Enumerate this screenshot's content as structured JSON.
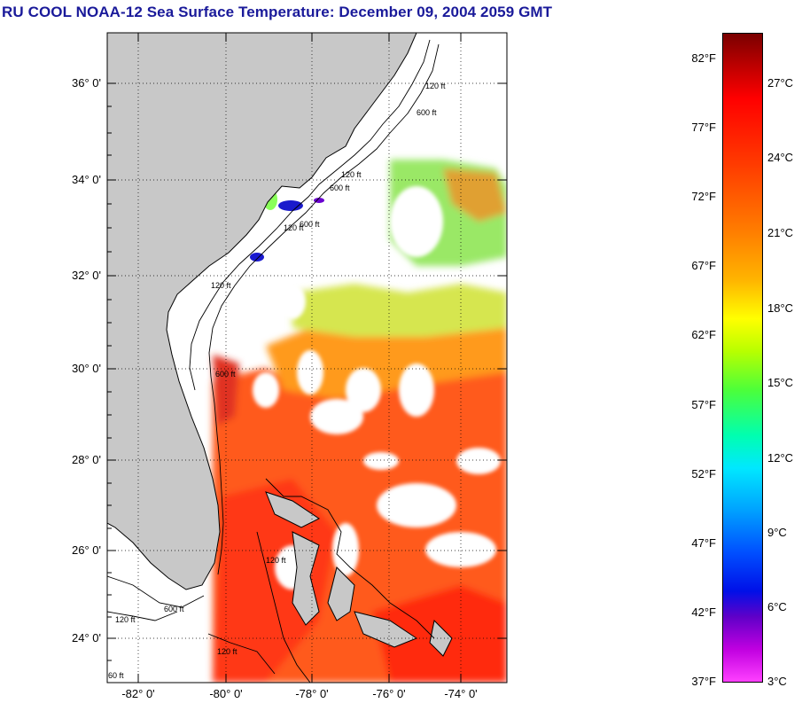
{
  "title": "RU COOL  NOAA-12  Sea Surface Temperature:  December 09, 2004 2059 GMT",
  "map": {
    "lat_labels": [
      "36° 0'",
      "34° 0'",
      "32° 0'",
      "30° 0'",
      "28° 0'",
      "26° 0'",
      "24° 0'"
    ],
    "lon_labels": [
      "-82° 0'",
      "-80° 0'",
      "-78° 0'",
      "-76° 0'",
      "-74° 0'"
    ],
    "contour_labels": [
      "120 ft",
      "600 ft",
      "120 ft",
      "600 ft",
      "120 ft",
      "600 ft",
      "120 ft",
      "600 ft",
      "120 ft",
      "600 ft",
      "120 ft",
      "60 ft",
      "120 ft"
    ],
    "colors": {
      "land": "#c8c8c8",
      "cloud": "#ffffff",
      "coast": "#000000",
      "grid": "#000000"
    }
  },
  "colorbar": {
    "fahrenheit_labels": [
      "82°F",
      "77°F",
      "72°F",
      "67°F",
      "62°F",
      "57°F",
      "52°F",
      "47°F",
      "42°F",
      "37°F"
    ],
    "celsius_labels": [
      "27°C",
      "24°C",
      "21°C",
      "18°C",
      "15°C",
      "12°C",
      "9°C",
      "6°C",
      "3°C"
    ],
    "range_f": [
      37,
      85
    ],
    "range_c": [
      3,
      29
    ]
  }
}
